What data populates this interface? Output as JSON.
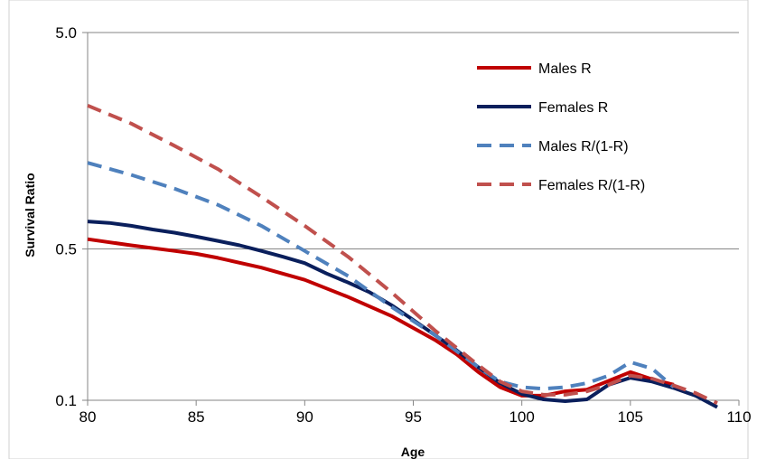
{
  "chart_data": {
    "type": "line",
    "title": "",
    "xlabel": "Age",
    "ylabel": "Survival Ratio",
    "xlim": [
      80,
      110
    ],
    "ylim": [
      0.1,
      5.0
    ],
    "y_scale": "log",
    "x_ticks": [
      "80",
      "85",
      "90",
      "95",
      "100",
      "105",
      "110"
    ],
    "y_ticks": [
      "0.1",
      "0.5",
      "5.0"
    ],
    "legend_position": "top-right",
    "grid": "horizontal",
    "series": [
      {
        "name": "Males R",
        "color": "#c00000",
        "dash": "solid",
        "x": [
          80,
          82,
          84,
          85,
          86,
          88,
          90,
          92,
          94,
          96,
          97,
          98,
          99,
          100,
          101,
          102,
          103,
          104,
          105,
          106,
          107
        ],
        "y": [
          0.555,
          0.52,
          0.49,
          0.475,
          0.455,
          0.41,
          0.36,
          0.3,
          0.245,
          0.19,
          0.163,
          0.135,
          0.115,
          0.105,
          0.105,
          0.11,
          0.112,
          0.123,
          0.135,
          0.125,
          0.118
        ]
      },
      {
        "name": "Females R",
        "color": "#0a1f5c",
        "dash": "solid",
        "x": [
          80,
          81,
          82,
          83,
          84,
          85,
          86,
          87,
          88,
          89,
          90,
          91,
          92,
          93,
          94,
          95,
          96,
          97,
          98,
          99,
          100,
          101,
          102,
          103,
          104,
          105,
          106,
          107,
          108,
          109
        ],
        "y": [
          0.67,
          0.66,
          0.64,
          0.615,
          0.595,
          0.57,
          0.545,
          0.52,
          0.49,
          0.46,
          0.43,
          0.385,
          0.35,
          0.315,
          0.275,
          0.235,
          0.2,
          0.17,
          0.142,
          0.12,
          0.107,
          0.101,
          0.099,
          0.101,
          0.118,
          0.127,
          0.122,
          0.114,
          0.105,
          0.093
        ]
      },
      {
        "name": "Males R/(1-R)",
        "color": "#4f81bd",
        "dash": "dashed",
        "x": [
          80,
          82,
          84,
          86,
          88,
          90,
          92,
          94,
          96,
          98,
          99,
          100,
          101,
          102,
          103,
          104,
          105,
          106,
          107
        ],
        "y": [
          1.25,
          1.1,
          0.95,
          0.8,
          0.64,
          0.49,
          0.375,
          0.27,
          0.2,
          0.142,
          0.122,
          0.115,
          0.113,
          0.115,
          0.12,
          0.13,
          0.15,
          0.14,
          0.115
        ]
      },
      {
        "name": "Females R/(1-R)",
        "color": "#c0504d",
        "dash": "dashed",
        "x": [
          80,
          82,
          84,
          86,
          88,
          90,
          92,
          94,
          96,
          98,
          99,
          100,
          101,
          102,
          103,
          104,
          105,
          106,
          107,
          108,
          109
        ],
        "y": [
          2.3,
          1.9,
          1.5,
          1.17,
          0.87,
          0.64,
          0.46,
          0.315,
          0.21,
          0.145,
          0.122,
          0.11,
          0.106,
          0.106,
          0.11,
          0.118,
          0.13,
          0.126,
          0.117,
          0.108,
          0.097
        ]
      }
    ]
  }
}
